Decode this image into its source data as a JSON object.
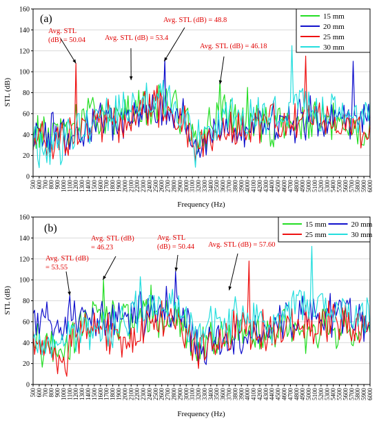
{
  "chart_data": [
    {
      "type": "line",
      "panel_label": "(a)",
      "xlabel": "Frequency (Hz)",
      "ylabel": "STL (dB)",
      "ylim": [
        0,
        160
      ],
      "yticks": [
        "0",
        "20",
        "40",
        "60",
        "80",
        "100",
        "120",
        "140",
        "160"
      ],
      "xlim": [
        500,
        6000
      ],
      "x_tick_step": 100,
      "legend_position": "top-right",
      "series": [
        {
          "name": "15 mm",
          "color": "#22dd22",
          "anchors": [
            [
              500,
              45
            ],
            [
              700,
              40
            ],
            [
              1000,
              42
            ],
            [
              1300,
              52
            ],
            [
              1600,
              60
            ],
            [
              1900,
              55
            ],
            [
              2200,
              62
            ],
            [
              2500,
              68
            ],
            [
              2800,
              70
            ],
            [
              3000,
              55
            ],
            [
              3150,
              25
            ],
            [
              3300,
              40
            ],
            [
              3500,
              62
            ],
            [
              3800,
              55
            ],
            [
              4100,
              50
            ],
            [
              4400,
              48
            ],
            [
              4700,
              52
            ],
            [
              5000,
              50
            ],
            [
              5300,
              50
            ],
            [
              5600,
              48
            ],
            [
              6000,
              45
            ]
          ],
          "spikes": [
            [
              3550,
              92
            ],
            [
              4000,
              85
            ]
          ]
        },
        {
          "name": "20 mm",
          "color": "#1010cc",
          "anchors": [
            [
              500,
              38
            ],
            [
              700,
              42
            ],
            [
              1000,
              38
            ],
            [
              1300,
              45
            ],
            [
              1600,
              50
            ],
            [
              1900,
              52
            ],
            [
              2200,
              60
            ],
            [
              2500,
              65
            ],
            [
              2800,
              62
            ],
            [
              3000,
              55
            ],
            [
              3150,
              30
            ],
            [
              3300,
              28
            ],
            [
              3500,
              40
            ],
            [
              3800,
              48
            ],
            [
              4100,
              45
            ],
            [
              4400,
              48
            ],
            [
              4700,
              52
            ],
            [
              5000,
              55
            ],
            [
              5300,
              55
            ],
            [
              5600,
              58
            ],
            [
              6000,
              55
            ]
          ],
          "spikes": [
            [
              2640,
              112
            ],
            [
              5720,
              110
            ]
          ]
        },
        {
          "name": "25 mm",
          "color": "#ee1111",
          "anchors": [
            [
              500,
              38
            ],
            [
              700,
              35
            ],
            [
              1000,
              30
            ],
            [
              1300,
              50
            ],
            [
              1600,
              55
            ],
            [
              1900,
              52
            ],
            [
              2200,
              60
            ],
            [
              2500,
              68
            ],
            [
              2800,
              60
            ],
            [
              3000,
              52
            ],
            [
              3150,
              22
            ],
            [
              3300,
              30
            ],
            [
              3500,
              45
            ],
            [
              3800,
              48
            ],
            [
              4100,
              50
            ],
            [
              4400,
              50
            ],
            [
              4700,
              55
            ],
            [
              5000,
              60
            ],
            [
              5300,
              55
            ],
            [
              5600,
              50
            ],
            [
              6000,
              48
            ]
          ],
          "spikes": [
            [
              1210,
              108
            ],
            [
              4940,
              115
            ]
          ]
        },
        {
          "name": "30 mm",
          "color": "#22dddd",
          "anchors": [
            [
              500,
              25
            ],
            [
              700,
              28
            ],
            [
              1000,
              35
            ],
            [
              1300,
              48
            ],
            [
              1600,
              60
            ],
            [
              1900,
              62
            ],
            [
              2200,
              72
            ],
            [
              2500,
              75
            ],
            [
              2800,
              70
            ],
            [
              3000,
              55
            ],
            [
              3150,
              30
            ],
            [
              3300,
              35
            ],
            [
              3500,
              55
            ],
            [
              3800,
              58
            ],
            [
              4100,
              55
            ],
            [
              4400,
              55
            ],
            [
              4700,
              62
            ],
            [
              5000,
              62
            ],
            [
              5300,
              60
            ],
            [
              5600,
              60
            ],
            [
              6000,
              58
            ]
          ],
          "spikes": [
            [
              4720,
              125
            ]
          ]
        }
      ],
      "annotations": [
        {
          "lines": [
            "Avg. STL",
            "(dB) = 50.04"
          ],
          "at": [
            1200,
            108
          ]
        },
        {
          "lines": [
            "Avg. STL  (dB) = 53.4"
          ],
          "at": [
            2100,
            92
          ]
        },
        {
          "lines": [
            "Avg. STL (dB) = 48.8"
          ],
          "at": [
            2640,
            110
          ]
        },
        {
          "lines": [
            "Avg. STL (dB) = 46.18"
          ],
          "at": [
            3550,
            88
          ]
        }
      ]
    },
    {
      "type": "line",
      "panel_label": "(b)",
      "xlabel": "Frequency (Hz)",
      "ylabel": "STL (dB)",
      "ylim": [
        0,
        160
      ],
      "yticks": [
        "0",
        "20",
        "40",
        "60",
        "80",
        "100",
        "120",
        "140",
        "160"
      ],
      "xlim": [
        500,
        6000
      ],
      "x_tick_step": 100,
      "legend_position": "top-right",
      "series": [
        {
          "name": "15 mm",
          "color": "#22dd22",
          "anchors": [
            [
              500,
              45
            ],
            [
              700,
              30
            ],
            [
              1000,
              35
            ],
            [
              1300,
              60
            ],
            [
              1600,
              65
            ],
            [
              1900,
              62
            ],
            [
              2200,
              60
            ],
            [
              2500,
              65
            ],
            [
              2800,
              62
            ],
            [
              3000,
              50
            ],
            [
              3150,
              28
            ],
            [
              3300,
              35
            ],
            [
              3500,
              45
            ],
            [
              3800,
              55
            ],
            [
              4100,
              48
            ],
            [
              4400,
              52
            ],
            [
              4700,
              55
            ],
            [
              5000,
              52
            ],
            [
              5300,
              55
            ],
            [
              5600,
              55
            ],
            [
              6000,
              50
            ]
          ],
          "spikes": [
            [
              1640,
              100
            ],
            [
              2420,
              95
            ]
          ]
        },
        {
          "name": "20 mm",
          "color": "#1010cc",
          "anchors": [
            [
              500,
              55
            ],
            [
              700,
              62
            ],
            [
              1000,
              55
            ],
            [
              1300,
              58
            ],
            [
              1600,
              60
            ],
            [
              1900,
              62
            ],
            [
              2200,
              65
            ],
            [
              2500,
              70
            ],
            [
              2800,
              75
            ],
            [
              3000,
              60
            ],
            [
              3150,
              40
            ],
            [
              3300,
              30
            ],
            [
              3500,
              45
            ],
            [
              3800,
              50
            ],
            [
              4100,
              48
            ],
            [
              4400,
              55
            ],
            [
              4700,
              60
            ],
            [
              5000,
              65
            ],
            [
              5300,
              68
            ],
            [
              5600,
              65
            ],
            [
              6000,
              60
            ]
          ],
          "spikes": [
            [
              1100,
              85
            ],
            [
              2830,
              108
            ]
          ]
        },
        {
          "name": "25 mm",
          "color": "#ee1111",
          "anchors": [
            [
              500,
              40
            ],
            [
              700,
              30
            ],
            [
              1000,
              25
            ],
            [
              1300,
              52
            ],
            [
              1600,
              58
            ],
            [
              1900,
              40
            ],
            [
              2200,
              55
            ],
            [
              2500,
              60
            ],
            [
              2800,
              65
            ],
            [
              3000,
              50
            ],
            [
              3150,
              28
            ],
            [
              3300,
              30
            ],
            [
              3500,
              40
            ],
            [
              3800,
              55
            ],
            [
              4100,
              50
            ],
            [
              4400,
              52
            ],
            [
              4700,
              58
            ],
            [
              5000,
              60
            ],
            [
              5300,
              58
            ],
            [
              5600,
              60
            ],
            [
              6000,
              55
            ]
          ],
          "spikes": [
            [
              4030,
              118
            ]
          ]
        },
        {
          "name": "30 mm",
          "color": "#22dddd",
          "anchors": [
            [
              500,
              35
            ],
            [
              700,
              38
            ],
            [
              1000,
              45
            ],
            [
              1300,
              45
            ],
            [
              1600,
              55
            ],
            [
              1900,
              58
            ],
            [
              2200,
              70
            ],
            [
              2500,
              75
            ],
            [
              2800,
              72
            ],
            [
              3000,
              62
            ],
            [
              3150,
              45
            ],
            [
              3300,
              50
            ],
            [
              3500,
              58
            ],
            [
              3800,
              62
            ],
            [
              4100,
              60
            ],
            [
              4400,
              62
            ],
            [
              4700,
              70
            ],
            [
              5000,
              75
            ],
            [
              5300,
              72
            ],
            [
              5600,
              70
            ],
            [
              6000,
              65
            ]
          ],
          "spikes": [
            [
              5060,
              132
            ],
            [
              2260,
              103
            ]
          ]
        }
      ],
      "annotations": [
        {
          "lines": [
            "Avg. STL (dB)",
            "= 53.55"
          ],
          "at": [
            1100,
            85
          ]
        },
        {
          "lines": [
            "Avg. STL (dB)",
            "= 46.23"
          ],
          "at": [
            1640,
            100
          ]
        },
        {
          "lines": [
            "Avg. STL",
            "(dB) = 50.44"
          ],
          "at": [
            2830,
            108
          ]
        },
        {
          "lines": [
            "Avg. STL (dB) = 57.60"
          ],
          "at": [
            3700,
            90
          ]
        }
      ]
    }
  ]
}
